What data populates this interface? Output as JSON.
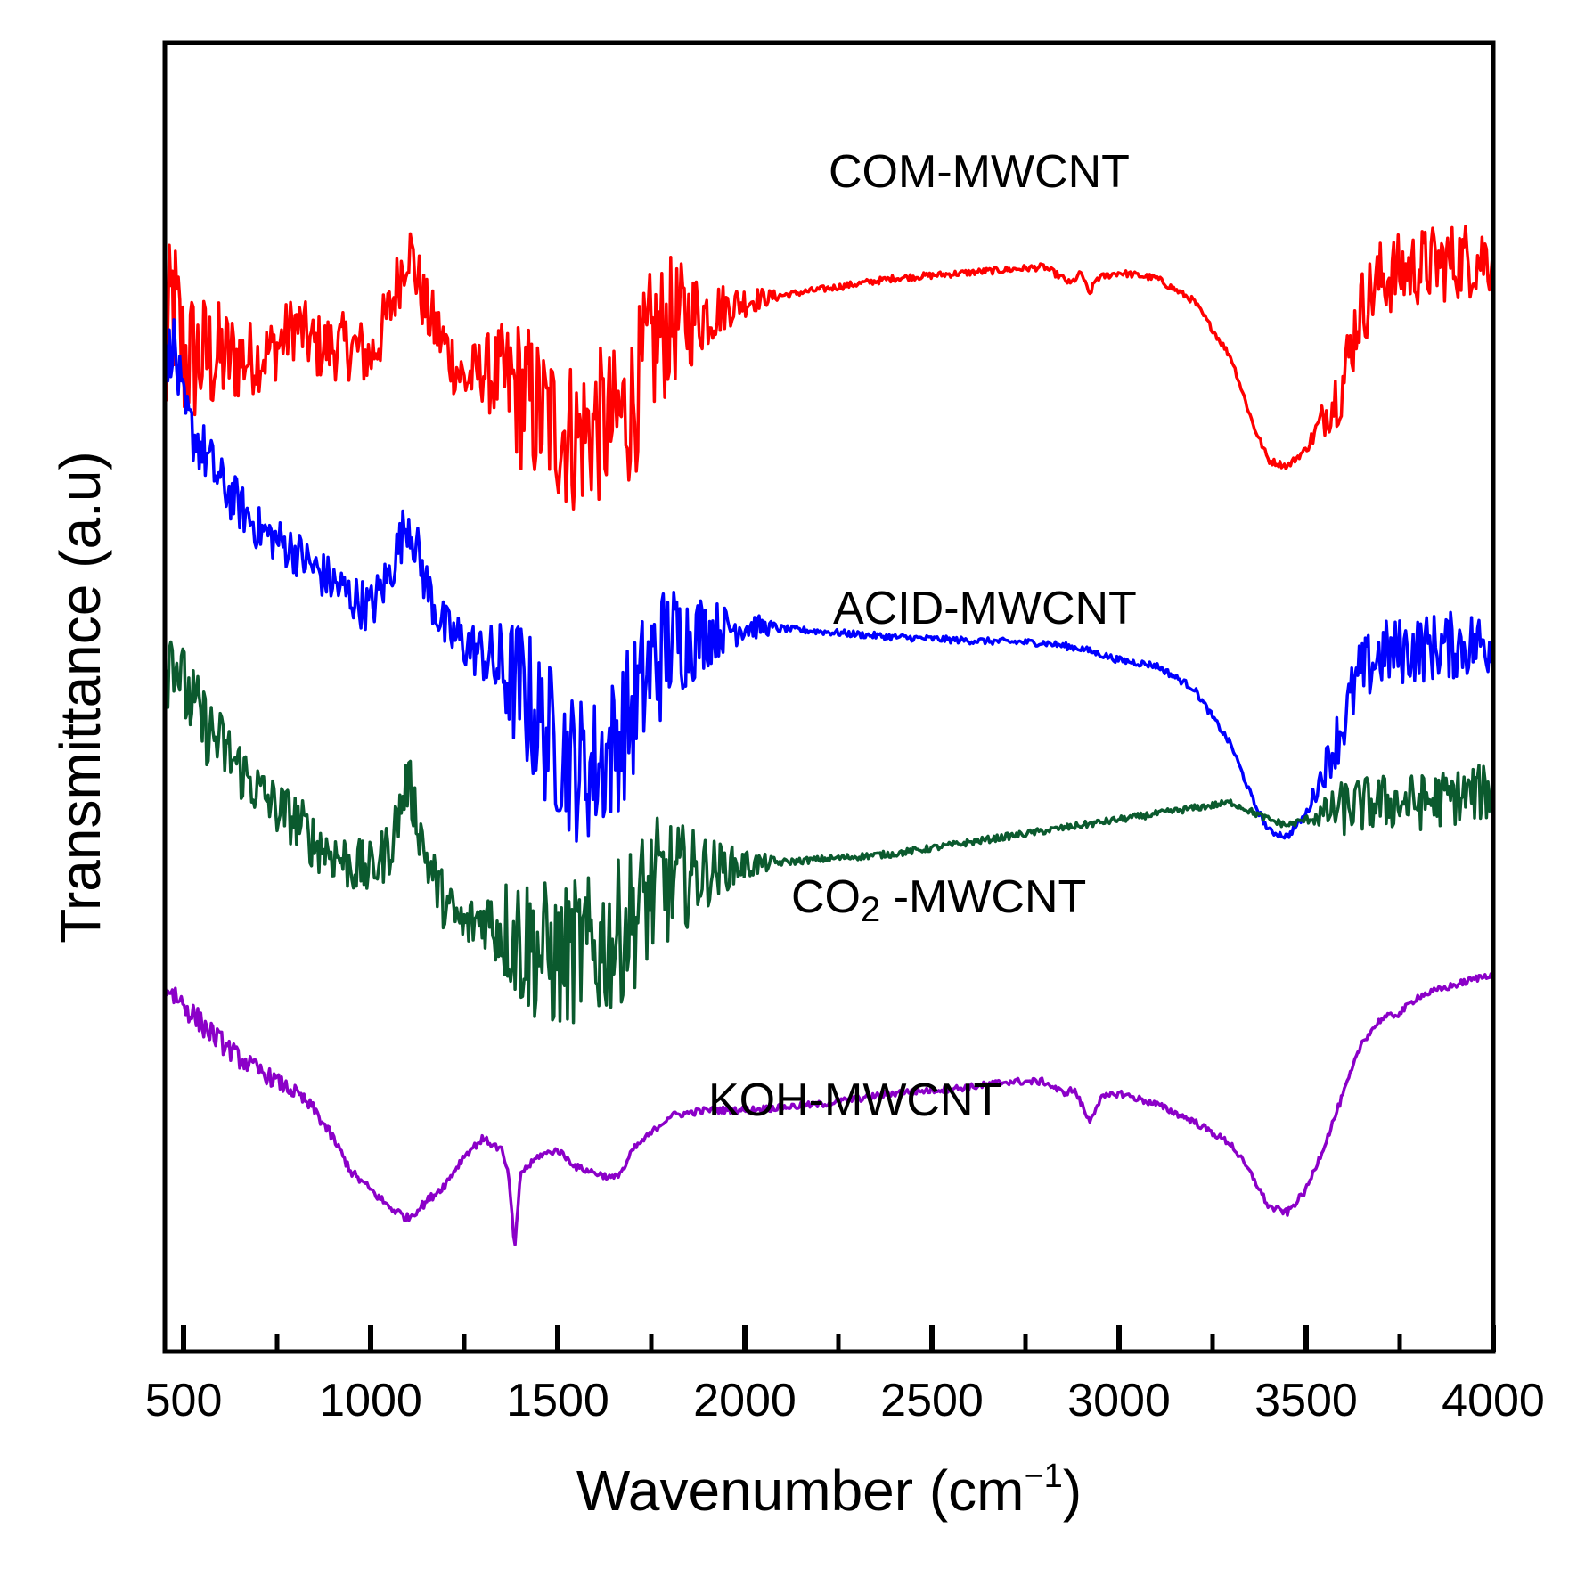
{
  "chart_data": {
    "type": "line",
    "title": "",
    "xlabel": {
      "main": "Wavenumber (cm",
      "sup": "−1",
      "close": ")"
    },
    "ylabel": "Transmittance (a.u)",
    "xlim": [
      450,
      4000
    ],
    "ylim": [
      0,
      100
    ],
    "grid": false,
    "legend": "none",
    "x_ticks": [
      500,
      1000,
      1500,
      2000,
      2500,
      3000,
      3500,
      4000
    ],
    "x_ticks_minor": [
      750,
      1250,
      1750,
      2250,
      2750,
      3250,
      3750
    ],
    "series": [
      {
        "name": "COM-MWCNT",
        "label_parts": [
          "COM-MWCNT"
        ],
        "color": "#ff0000",
        "noise": [
          [
            450,
            8
          ],
          [
            700,
            3
          ],
          [
            1300,
            3
          ],
          [
            1400,
            7
          ],
          [
            1760,
            7
          ],
          [
            1950,
            2
          ],
          [
            2100,
            0.3
          ],
          [
            3500,
            0.3
          ],
          [
            3600,
            3.5
          ],
          [
            4000,
            3.5
          ]
        ],
        "points": [
          [
            450,
            78
          ],
          [
            470,
            85
          ],
          [
            500,
            80
          ],
          [
            550,
            80
          ],
          [
            650,
            80
          ],
          [
            700,
            80
          ],
          [
            750,
            81
          ],
          [
            800,
            83
          ],
          [
            850,
            81
          ],
          [
            950,
            81
          ],
          [
            1000,
            80
          ],
          [
            1050,
            84
          ],
          [
            1100,
            90
          ],
          [
            1150,
            84
          ],
          [
            1200,
            81
          ],
          [
            1250,
            78
          ],
          [
            1300,
            79
          ],
          [
            1400,
            77
          ],
          [
            1450,
            75
          ],
          [
            1500,
            74
          ],
          [
            1550,
            73
          ],
          [
            1600,
            74
          ],
          [
            1650,
            74
          ],
          [
            1700,
            76
          ],
          [
            1750,
            81
          ],
          [
            1800,
            83
          ],
          [
            1900,
            84
          ],
          [
            2000,
            85
          ],
          [
            2200,
            86
          ],
          [
            2400,
            87
          ],
          [
            2600,
            87.5
          ],
          [
            2800,
            88
          ],
          [
            2850,
            87
          ],
          [
            2870,
            86.5
          ],
          [
            2900,
            87.5
          ],
          [
            2920,
            85.5
          ],
          [
            2940,
            87
          ],
          [
            3000,
            87.5
          ],
          [
            3100,
            87
          ],
          [
            3200,
            85
          ],
          [
            3300,
            80
          ],
          [
            3360,
            74
          ],
          [
            3400,
            71
          ],
          [
            3450,
            70.5
          ],
          [
            3500,
            72
          ],
          [
            3550,
            75
          ],
          [
            3600,
            78
          ],
          [
            3640,
            84
          ],
          [
            3700,
            87
          ],
          [
            3800,
            88
          ],
          [
            3900,
            88.5
          ],
          [
            4000,
            89
          ]
        ]
      },
      {
        "name": "ACID-MWCNT",
        "label_parts": [
          "ACID-MWCNT"
        ],
        "color": "#0000ff",
        "noise": [
          [
            450,
            3
          ],
          [
            700,
            2
          ],
          [
            1300,
            2.5
          ],
          [
            1400,
            6.5
          ],
          [
            1760,
            6.5
          ],
          [
            1950,
            2
          ],
          [
            2100,
            0.3
          ],
          [
            3500,
            0.3
          ],
          [
            3600,
            3
          ],
          [
            4000,
            3
          ]
        ],
        "points": [
          [
            450,
            78
          ],
          [
            470,
            82
          ],
          [
            500,
            75
          ],
          [
            550,
            72
          ],
          [
            600,
            69
          ],
          [
            650,
            67
          ],
          [
            700,
            65
          ],
          [
            750,
            64
          ],
          [
            800,
            63
          ],
          [
            850,
            61.5
          ],
          [
            950,
            59
          ],
          [
            1000,
            58
          ],
          [
            1050,
            61
          ],
          [
            1100,
            66
          ],
          [
            1150,
            60
          ],
          [
            1200,
            56
          ],
          [
            1300,
            54
          ],
          [
            1400,
            51
          ],
          [
            1450,
            48
          ],
          [
            1500,
            46
          ],
          [
            1550,
            44
          ],
          [
            1600,
            44
          ],
          [
            1650,
            46
          ],
          [
            1700,
            49
          ],
          [
            1750,
            53
          ],
          [
            1800,
            55
          ],
          [
            1900,
            56
          ],
          [
            2000,
            56.5
          ],
          [
            2200,
            56
          ],
          [
            2400,
            55.5
          ],
          [
            2600,
            55.2
          ],
          [
            2800,
            55
          ],
          [
            2900,
            54.5
          ],
          [
            3000,
            53.5
          ],
          [
            3100,
            53
          ],
          [
            3200,
            51
          ],
          [
            3300,
            46
          ],
          [
            3360,
            41
          ],
          [
            3400,
            38.5
          ],
          [
            3450,
            38
          ],
          [
            3500,
            40
          ],
          [
            3550,
            44
          ],
          [
            3600,
            48
          ],
          [
            3640,
            52
          ],
          [
            3700,
            54
          ],
          [
            3800,
            54.5
          ],
          [
            3900,
            54.8
          ],
          [
            4000,
            55
          ]
        ]
      },
      {
        "name": "CO2-MWCNT",
        "label_parts": [
          "CO",
          "2",
          " -MWCNT"
        ],
        "color": "#0b5a2e",
        "noise": [
          [
            450,
            4
          ],
          [
            700,
            2.5
          ],
          [
            1300,
            2.5
          ],
          [
            1400,
            6.5
          ],
          [
            1760,
            6.5
          ],
          [
            1950,
            2
          ],
          [
            2100,
            0.3
          ],
          [
            3500,
            0.3
          ],
          [
            3600,
            2.5
          ],
          [
            4000,
            2.5
          ]
        ],
        "points": [
          [
            450,
            52
          ],
          [
            470,
            55
          ],
          [
            500,
            51
          ],
          [
            550,
            48
          ],
          [
            600,
            46
          ],
          [
            650,
            44
          ],
          [
            700,
            42
          ],
          [
            750,
            40.5
          ],
          [
            800,
            39.5
          ],
          [
            850,
            37.5
          ],
          [
            950,
            35.5
          ],
          [
            1000,
            35
          ],
          [
            1050,
            37
          ],
          [
            1100,
            43
          ],
          [
            1150,
            36
          ],
          [
            1200,
            32
          ],
          [
            1250,
            30
          ],
          [
            1300,
            31
          ],
          [
            1400,
            29
          ],
          [
            1450,
            28
          ],
          [
            1500,
            27
          ],
          [
            1550,
            28
          ],
          [
            1600,
            28
          ],
          [
            1650,
            29
          ],
          [
            1700,
            31
          ],
          [
            1750,
            33
          ],
          [
            1800,
            34
          ],
          [
            1900,
            35
          ],
          [
            2000,
            35.5
          ],
          [
            2200,
            36
          ],
          [
            2400,
            36.5
          ],
          [
            2600,
            37.5
          ],
          [
            2800,
            38.5
          ],
          [
            3000,
            39.5
          ],
          [
            3200,
            40.5
          ],
          [
            3300,
            41
          ],
          [
            3400,
            39.5
          ],
          [
            3450,
            39
          ],
          [
            3500,
            39.5
          ],
          [
            3550,
            40
          ],
          [
            3600,
            40.5
          ],
          [
            3700,
            41
          ],
          [
            3800,
            41
          ],
          [
            3900,
            41.5
          ],
          [
            4000,
            42
          ]
        ]
      },
      {
        "name": "KOH-MWCNT",
        "label_parts": [
          "KOH-MWCNT"
        ],
        "color": "#8b00c8",
        "noise": [
          [
            450,
            1.2
          ],
          [
            700,
            0.8
          ],
          [
            950,
            0.4
          ],
          [
            1050,
            0.4
          ],
          [
            1400,
            0.3
          ],
          [
            4000,
            0.3
          ]
        ],
        "points": [
          [
            450,
            25
          ],
          [
            480,
            24
          ],
          [
            550,
            21.5
          ],
          [
            600,
            20
          ],
          [
            650,
            18.5
          ],
          [
            700,
            17.5
          ],
          [
            750,
            16.5
          ],
          [
            800,
            15.5
          ],
          [
            850,
            14
          ],
          [
            900,
            11.5
          ],
          [
            950,
            8.5
          ],
          [
            1000,
            7
          ],
          [
            1050,
            5.5
          ],
          [
            1100,
            4.5
          ],
          [
            1150,
            6
          ],
          [
            1200,
            7.5
          ],
          [
            1250,
            10
          ],
          [
            1300,
            11.5
          ],
          [
            1350,
            10.5
          ],
          [
            1370,
            8
          ],
          [
            1385,
            1.5
          ],
          [
            1400,
            8.5
          ],
          [
            1420,
            9
          ],
          [
            1450,
            10
          ],
          [
            1500,
            10.5
          ],
          [
            1550,
            9
          ],
          [
            1600,
            8.5
          ],
          [
            1650,
            8
          ],
          [
            1680,
            9
          ],
          [
            1700,
            10.5
          ],
          [
            1750,
            12
          ],
          [
            1800,
            13.5
          ],
          [
            1900,
            14
          ],
          [
            2000,
            14
          ],
          [
            2200,
            14.5
          ],
          [
            2400,
            15.5
          ],
          [
            2600,
            16
          ],
          [
            2700,
            16.5
          ],
          [
            2800,
            16.5
          ],
          [
            2850,
            15.5
          ],
          [
            2880,
            15.8
          ],
          [
            2900,
            14.5
          ],
          [
            2920,
            13
          ],
          [
            2950,
            15
          ],
          [
            3000,
            15.5
          ],
          [
            3100,
            14.5
          ],
          [
            3200,
            13
          ],
          [
            3300,
            11
          ],
          [
            3360,
            8
          ],
          [
            3400,
            5.5
          ],
          [
            3450,
            5
          ],
          [
            3500,
            7
          ],
          [
            3550,
            11
          ],
          [
            3600,
            15.5
          ],
          [
            3650,
            20
          ],
          [
            3700,
            22
          ],
          [
            3750,
            22.5
          ],
          [
            3800,
            24
          ],
          [
            3900,
            25
          ],
          [
            4000,
            26
          ]
        ]
      }
    ]
  }
}
